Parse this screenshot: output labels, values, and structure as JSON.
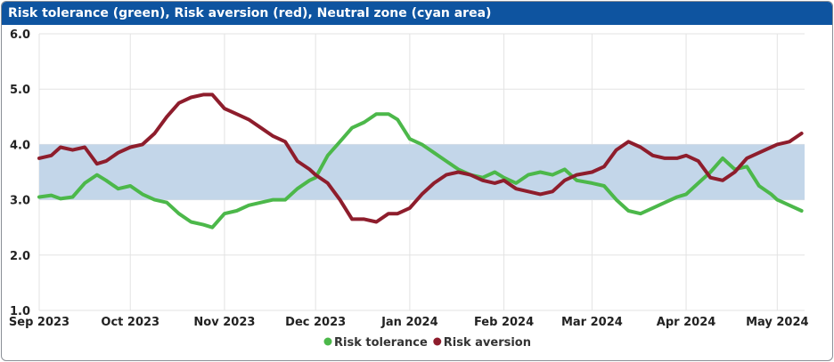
{
  "chart_data": {
    "type": "line",
    "title": "Risk tolerance (green), Risk aversion (red), Neutral zone (cyan area)",
    "xlabel": "",
    "ylabel": "",
    "ylim": [
      1.0,
      6.0
    ],
    "y_ticks": [
      "1.0",
      "2.0",
      "3.0",
      "4.0",
      "5.0",
      "6.0"
    ],
    "x_tick_labels": [
      "Sep 2023",
      "Oct 2023",
      "Nov 2023",
      "Dec 2023",
      "Jan 2024",
      "Feb 2024",
      "Mar 2024",
      "Apr 2024",
      "May 2024"
    ],
    "x_tick_dates": [
      "2023-09-01",
      "2023-10-01",
      "2023-11-01",
      "2023-12-01",
      "2024-01-01",
      "2024-02-01",
      "2024-03-01",
      "2024-04-01",
      "2024-05-01"
    ],
    "xlim": [
      "2023-09-01",
      "2024-05-10"
    ],
    "neutral_zone": {
      "low": 3.0,
      "high": 4.0,
      "color": "#c3d6e9"
    },
    "grid": true,
    "legend_position": "bottom-center",
    "series": [
      {
        "name": "Risk tolerance",
        "color": "#4cb84a",
        "x": [
          "2023-09-01",
          "2023-09-05",
          "2023-09-08",
          "2023-09-12",
          "2023-09-16",
          "2023-09-20",
          "2023-09-23",
          "2023-09-27",
          "2023-10-01",
          "2023-10-05",
          "2023-10-09",
          "2023-10-13",
          "2023-10-17",
          "2023-10-21",
          "2023-10-25",
          "2023-10-28",
          "2023-11-01",
          "2023-11-05",
          "2023-11-09",
          "2023-11-13",
          "2023-11-17",
          "2023-11-21",
          "2023-11-25",
          "2023-11-29",
          "2023-12-01",
          "2023-12-05",
          "2023-12-09",
          "2023-12-13",
          "2023-12-17",
          "2023-12-21",
          "2023-12-25",
          "2023-12-28",
          "2024-01-01",
          "2024-01-05",
          "2024-01-09",
          "2024-01-13",
          "2024-01-17",
          "2024-01-21",
          "2024-01-25",
          "2024-01-29",
          "2024-02-01",
          "2024-02-05",
          "2024-02-09",
          "2024-02-13",
          "2024-02-17",
          "2024-02-21",
          "2024-02-25",
          "2024-03-01",
          "2024-03-05",
          "2024-03-09",
          "2024-03-13",
          "2024-03-17",
          "2024-03-21",
          "2024-03-25",
          "2024-03-29",
          "2024-04-01",
          "2024-04-05",
          "2024-04-09",
          "2024-04-13",
          "2024-04-17",
          "2024-04-21",
          "2024-04-25",
          "2024-04-29",
          "2024-05-01",
          "2024-05-05",
          "2024-05-09"
        ],
        "values": [
          3.05,
          3.08,
          3.02,
          3.05,
          3.3,
          3.45,
          3.35,
          3.2,
          3.25,
          3.1,
          3.0,
          2.95,
          2.75,
          2.6,
          2.55,
          2.5,
          2.75,
          2.8,
          2.9,
          2.95,
          3.0,
          3.0,
          3.2,
          3.35,
          3.4,
          3.8,
          4.05,
          4.3,
          4.4,
          4.55,
          4.55,
          4.45,
          4.1,
          4.0,
          3.85,
          3.7,
          3.55,
          3.45,
          3.4,
          3.5,
          3.4,
          3.3,
          3.45,
          3.5,
          3.45,
          3.55,
          3.35,
          3.3,
          3.25,
          3.0,
          2.8,
          2.75,
          2.85,
          2.95,
          3.05,
          3.1,
          3.3,
          3.5,
          3.75,
          3.55,
          3.6,
          3.25,
          3.1,
          3.0,
          2.9,
          2.8
        ]
      },
      {
        "name": "Risk aversion",
        "color": "#8e1d2c",
        "x": [
          "2023-09-01",
          "2023-09-05",
          "2023-09-08",
          "2023-09-12",
          "2023-09-16",
          "2023-09-20",
          "2023-09-23",
          "2023-09-27",
          "2023-10-01",
          "2023-10-05",
          "2023-10-09",
          "2023-10-13",
          "2023-10-17",
          "2023-10-21",
          "2023-10-25",
          "2023-10-28",
          "2023-11-01",
          "2023-11-05",
          "2023-11-09",
          "2023-11-13",
          "2023-11-17",
          "2023-11-21",
          "2023-11-25",
          "2023-11-29",
          "2023-12-01",
          "2023-12-05",
          "2023-12-09",
          "2023-12-13",
          "2023-12-17",
          "2023-12-21",
          "2023-12-25",
          "2023-12-28",
          "2024-01-01",
          "2024-01-05",
          "2024-01-09",
          "2024-01-13",
          "2024-01-17",
          "2024-01-21",
          "2024-01-25",
          "2024-01-29",
          "2024-02-01",
          "2024-02-05",
          "2024-02-09",
          "2024-02-13",
          "2024-02-17",
          "2024-02-21",
          "2024-02-25",
          "2024-03-01",
          "2024-03-05",
          "2024-03-09",
          "2024-03-13",
          "2024-03-17",
          "2024-03-21",
          "2024-03-25",
          "2024-03-29",
          "2024-04-01",
          "2024-04-05",
          "2024-04-09",
          "2024-04-13",
          "2024-04-17",
          "2024-04-21",
          "2024-04-25",
          "2024-04-29",
          "2024-05-01",
          "2024-05-05",
          "2024-05-09"
        ],
        "values": [
          3.75,
          3.8,
          3.95,
          3.9,
          3.95,
          3.65,
          3.7,
          3.85,
          3.95,
          4.0,
          4.2,
          4.5,
          4.75,
          4.85,
          4.9,
          4.9,
          4.65,
          4.55,
          4.45,
          4.3,
          4.15,
          4.05,
          3.7,
          3.55,
          3.45,
          3.3,
          3.0,
          2.65,
          2.65,
          2.6,
          2.75,
          2.75,
          2.85,
          3.1,
          3.3,
          3.45,
          3.5,
          3.45,
          3.35,
          3.3,
          3.35,
          3.2,
          3.15,
          3.1,
          3.15,
          3.35,
          3.45,
          3.5,
          3.6,
          3.9,
          4.05,
          3.95,
          3.8,
          3.75,
          3.75,
          3.8,
          3.7,
          3.4,
          3.35,
          3.5,
          3.75,
          3.85,
          3.95,
          4.0,
          4.05,
          4.2
        ]
      }
    ]
  }
}
